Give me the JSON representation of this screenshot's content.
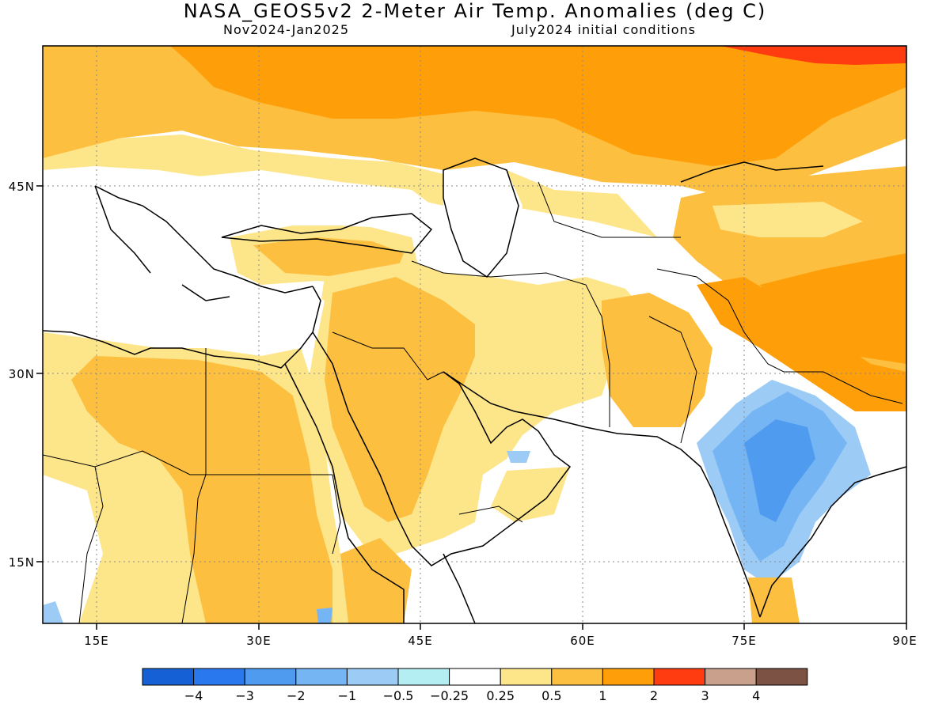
{
  "title": "NASA_GEOS5v2 2-Meter Air Temp. Anomalies (deg C)",
  "period": "Nov2024-Jan2025",
  "init": "July2024 initial conditions",
  "lat_labels": [
    "45N",
    "30N",
    "15N"
  ],
  "lon_labels": [
    "15E",
    "30E",
    "45E",
    "60E",
    "75E",
    "90E"
  ],
  "colorbar": {
    "colors": [
      "#1560d4",
      "#2a78ee",
      "#4f9bf0",
      "#76b5f4",
      "#9ccbf6",
      "#b4eef2",
      "#ffffff",
      "#fde58a",
      "#fdbf40",
      "#fe9f0a",
      "#ff3c10",
      "#c8a08c",
      "#7c5244"
    ],
    "labels": [
      "-4",
      "-3",
      "-2",
      "-1",
      "-0.5",
      "-0.25",
      "0.25",
      "0.5",
      "1",
      "2",
      "3",
      "4"
    ]
  }
}
